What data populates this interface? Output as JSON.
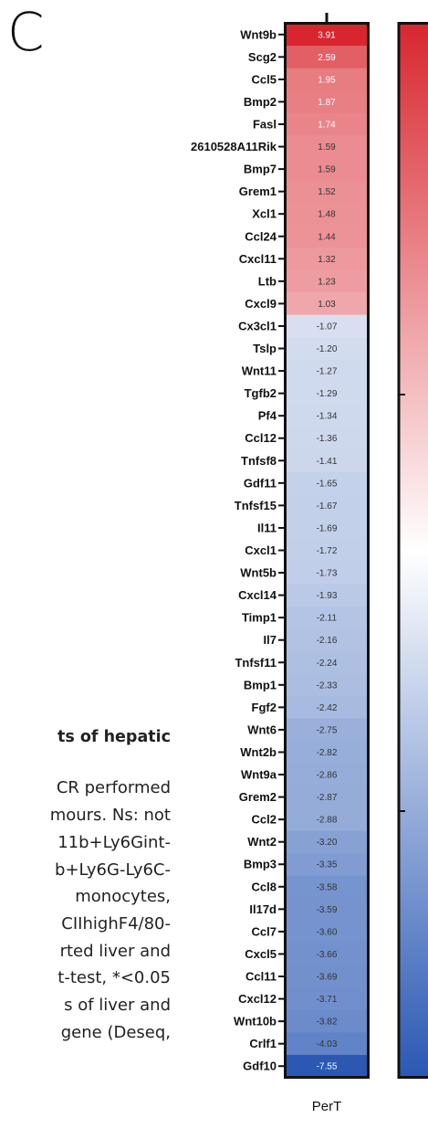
{
  "panel_letter": "C",
  "background_text": [
    "ts of hepatic",
    "CR performed",
    "mours. Ns: not",
    "11b+Ly6Gint-",
    "b+Ly6G-Ly6C-",
    "monocytes,",
    "CIIhighF4/80-",
    "rted liver and",
    "t-test, *<0.05",
    "s of liver and",
    "gene (Deseq,"
  ],
  "chart_data": {
    "type": "heatmap",
    "column_labels": [
      "PerT"
    ],
    "rows": [
      {
        "gene": "Wnt9b",
        "value": 3.91,
        "label": "3.91"
      },
      {
        "gene": "Scg2",
        "value": 2.59,
        "label": "2.59"
      },
      {
        "gene": "Ccl5",
        "value": 1.95,
        "label": "1.95"
      },
      {
        "gene": "Bmp2",
        "value": 1.87,
        "label": "1.87"
      },
      {
        "gene": "Fasl",
        "value": 1.74,
        "label": "1.74"
      },
      {
        "gene": "2610528A11Rik",
        "value": 1.59,
        "label": "1.59"
      },
      {
        "gene": "Bmp7",
        "value": 1.59,
        "label": "1.59"
      },
      {
        "gene": "Grem1",
        "value": 1.52,
        "label": "1.52"
      },
      {
        "gene": "Xcl1",
        "value": 1.48,
        "label": "1.48"
      },
      {
        "gene": "Ccl24",
        "value": 1.44,
        "label": "1.44"
      },
      {
        "gene": "Cxcl11",
        "value": 1.32,
        "label": "1.32"
      },
      {
        "gene": "Ltb",
        "value": 1.23,
        "label": "1.23"
      },
      {
        "gene": "Cxcl9",
        "value": 1.03,
        "label": "1.03"
      },
      {
        "gene": "Cx3cl1",
        "value": -1.07,
        "label": "-1.07"
      },
      {
        "gene": "Tslp",
        "value": -1.2,
        "label": "-1.20"
      },
      {
        "gene": "Wnt11",
        "value": -1.27,
        "label": "-1.27"
      },
      {
        "gene": "Tgfb2",
        "value": -1.29,
        "label": "-1.29"
      },
      {
        "gene": "Pf4",
        "value": -1.34,
        "label": "-1.34"
      },
      {
        "gene": "Ccl12",
        "value": -1.36,
        "label": "-1.36"
      },
      {
        "gene": "Tnfsf8",
        "value": -1.41,
        "label": "-1.41"
      },
      {
        "gene": "Gdf11",
        "value": -1.65,
        "label": "-1.65"
      },
      {
        "gene": "Tnfsf15",
        "value": -1.67,
        "label": "-1.67"
      },
      {
        "gene": "Il11",
        "value": -1.69,
        "label": "-1.69"
      },
      {
        "gene": "Cxcl1",
        "value": -1.72,
        "label": "-1.72"
      },
      {
        "gene": "Wnt5b",
        "value": -1.73,
        "label": "-1.73"
      },
      {
        "gene": "Cxcl14",
        "value": -1.93,
        "label": "-1.93"
      },
      {
        "gene": "Timp1",
        "value": -2.11,
        "label": "-2.11"
      },
      {
        "gene": "Il7",
        "value": -2.16,
        "label": "-2.16"
      },
      {
        "gene": "Tnfsf11",
        "value": -2.24,
        "label": "-2.24"
      },
      {
        "gene": "Bmp1",
        "value": -2.33,
        "label": "-2.33"
      },
      {
        "gene": "Fgf2",
        "value": -2.42,
        "label": "-2.42"
      },
      {
        "gene": "Wnt6",
        "value": -2.75,
        "label": "-2.75"
      },
      {
        "gene": "Wnt2b",
        "value": -2.82,
        "label": "-2.82"
      },
      {
        "gene": "Wnt9a",
        "value": -2.86,
        "label": "-2.86"
      },
      {
        "gene": "Grem2",
        "value": -2.87,
        "label": "-2.87"
      },
      {
        "gene": "Ccl2",
        "value": -2.88,
        "label": "-2.88"
      },
      {
        "gene": "Wnt2",
        "value": -3.2,
        "label": "-3.20"
      },
      {
        "gene": "Bmp3",
        "value": -3.35,
        "label": "-3.35"
      },
      {
        "gene": "Ccl8",
        "value": -3.58,
        "label": "-3.58"
      },
      {
        "gene": "Il17d",
        "value": -3.59,
        "label": "-3.59"
      },
      {
        "gene": "Ccl7",
        "value": -3.6,
        "label": "-3.60"
      },
      {
        "gene": "Cxcl5",
        "value": -3.66,
        "label": "-3.66"
      },
      {
        "gene": "Ccl11",
        "value": -3.69,
        "label": "-3.69"
      },
      {
        "gene": "Cxcl12",
        "value": -3.71,
        "label": "-3.71"
      },
      {
        "gene": "Wnt10b",
        "value": -3.82,
        "label": "-3.82"
      },
      {
        "gene": "Crlf1",
        "value": -4.03,
        "label": "-4.03"
      },
      {
        "gene": "Gdf10",
        "value": -7.55,
        "label": "-7.55"
      }
    ],
    "colorbar": {
      "colors": {
        "high": "#d8262f",
        "mid": "#ffffff",
        "low": "#2a58b3"
      },
      "range": [
        -7.55,
        3.91
      ]
    }
  }
}
